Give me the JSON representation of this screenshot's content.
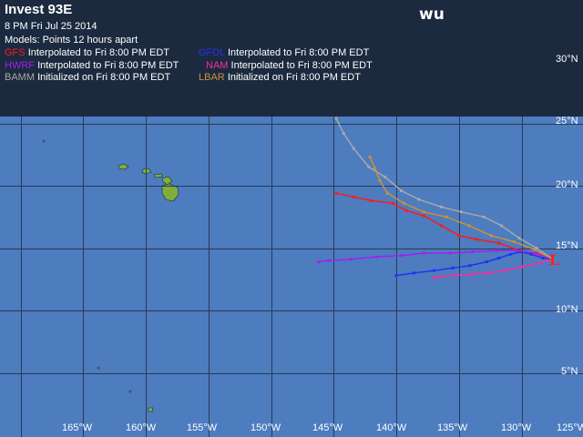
{
  "header": {
    "title": "Invest 93E",
    "date": "8 PM   Fri Jul 25 2014",
    "models_label": "Models:  Points 12 hours apart",
    "logo": "wu"
  },
  "legend": [
    {
      "model": "GFS",
      "color": "#ff1a1a",
      "desc": "Interpolated to Fri 8:00 PM EDT"
    },
    {
      "model": "GFDL",
      "color": "#2233ee",
      "desc": "Interpolated to Fri 8:00 PM EDT"
    },
    {
      "model": "HWRF",
      "color": "#a020f0",
      "desc": "Interpolated to Fri 8:00 PM EDT"
    },
    {
      "model": "NAM",
      "color": "#ff2c9c",
      "desc": "Interpolated to Fri 8:00 PM EDT"
    },
    {
      "model": "BAMM",
      "color": "#a8a8a8",
      "desc": "Initialized on Fri 8:00 PM EDT"
    },
    {
      "model": "LBAR",
      "color": "#c8923a",
      "desc": "Initialized on Fri 8:00 PM EDT"
    }
  ],
  "grid": {
    "lat_labels": [
      "30°N",
      "25°N",
      "20°N",
      "15°N",
      "10°N",
      "5°N"
    ],
    "lon_labels": [
      "165°W",
      "160°W",
      "155°W",
      "150°W",
      "145°W",
      "140°W",
      "135°W",
      "130°W",
      "125°W"
    ]
  },
  "storm_marker": "L",
  "colors": {
    "ocean": "#4d7cbf",
    "header": "#1c2a3f",
    "land": "#7fae3c",
    "grid": "#2a3a50",
    "marker": "#ff2020"
  },
  "tracks": [
    {
      "model": "GFS",
      "points": [
        [
          -127.5,
          14.1
        ],
        [
          -128.6,
          14.5
        ],
        [
          -130.2,
          14.8
        ],
        [
          -131.8,
          15.4
        ],
        [
          -133.6,
          15.7
        ],
        [
          -135.0,
          16.0
        ],
        [
          -136.4,
          16.8
        ],
        [
          -137.8,
          17.6
        ],
        [
          -139.2,
          18.0
        ],
        [
          -140.3,
          18.6
        ],
        [
          -142.0,
          18.8
        ],
        [
          -143.4,
          19.1
        ],
        [
          -144.8,
          19.4
        ]
      ]
    },
    {
      "model": "GFDL",
      "points": [
        [
          -127.5,
          14.1
        ],
        [
          -128.3,
          14.2
        ],
        [
          -129.2,
          14.5
        ],
        [
          -130.1,
          14.7
        ],
        [
          -130.9,
          14.5
        ],
        [
          -131.8,
          14.2
        ],
        [
          -132.8,
          13.9
        ],
        [
          -134.1,
          13.6
        ],
        [
          -135.5,
          13.4
        ],
        [
          -137.0,
          13.2
        ],
        [
          -138.6,
          13.0
        ],
        [
          -140.0,
          12.8
        ]
      ]
    },
    {
      "model": "HWRF",
      "points": [
        [
          -127.5,
          14.1
        ],
        [
          -128.8,
          14.6
        ],
        [
          -130.4,
          14.8
        ],
        [
          -132.0,
          14.8
        ],
        [
          -133.9,
          14.7
        ],
        [
          -135.7,
          14.6
        ],
        [
          -137.8,
          14.6
        ],
        [
          -139.6,
          14.4
        ],
        [
          -141.6,
          14.3
        ],
        [
          -143.6,
          14.1
        ],
        [
          -145.4,
          14.0
        ],
        [
          -146.2,
          13.9
        ]
      ]
    },
    {
      "model": "NAM",
      "points": [
        [
          -127.5,
          14.1
        ],
        [
          -128.6,
          13.8
        ],
        [
          -130.0,
          13.5
        ],
        [
          -131.3,
          13.2
        ],
        [
          -132.6,
          13.0
        ],
        [
          -134.0,
          12.9
        ],
        [
          -135.4,
          12.8
        ],
        [
          -136.6,
          12.7
        ],
        [
          -137.0,
          12.6
        ]
      ]
    },
    {
      "model": "BAMM",
      "points": [
        [
          -127.5,
          14.1
        ],
        [
          -128.8,
          15.0
        ],
        [
          -130.2,
          15.8
        ],
        [
          -131.6,
          16.8
        ],
        [
          -133.0,
          17.5
        ],
        [
          -134.8,
          17.9
        ],
        [
          -136.4,
          18.3
        ],
        [
          -138.2,
          18.9
        ],
        [
          -139.6,
          19.6
        ],
        [
          -140.9,
          20.7
        ],
        [
          -142.2,
          21.5
        ],
        [
          -143.4,
          23.0
        ],
        [
          -144.2,
          24.2
        ],
        [
          -144.8,
          25.4
        ]
      ]
    },
    {
      "model": "LBAR",
      "points": [
        [
          -127.5,
          14.1
        ],
        [
          -129.0,
          14.9
        ],
        [
          -130.6,
          15.5
        ],
        [
          -132.4,
          16.0
        ],
        [
          -134.2,
          16.8
        ],
        [
          -136.0,
          17.5
        ],
        [
          -137.8,
          17.9
        ],
        [
          -139.4,
          18.6
        ],
        [
          -140.7,
          19.4
        ],
        [
          -141.3,
          20.4
        ],
        [
          -141.7,
          21.4
        ],
        [
          -142.1,
          22.3
        ]
      ]
    }
  ]
}
